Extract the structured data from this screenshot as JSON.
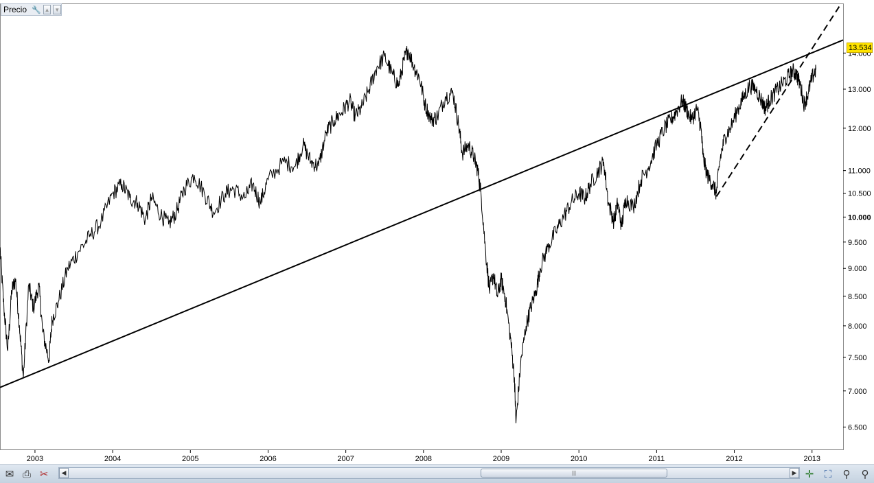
{
  "panel": {
    "title": "Precio",
    "icons": [
      "wrench-icon",
      "arrow-up-icon",
      "arrow-down-icon"
    ]
  },
  "price_badge": "13.534,9",
  "toolbar": {
    "left_icons": [
      "mail-icon",
      "print-icon",
      "scissors-icon"
    ],
    "right_icons": [
      "crosshair-icon",
      "zoom-fit-icon",
      "zoom-out-icon",
      "zoom-in-icon"
    ],
    "scroll_position": 0.77
  },
  "chart_data": {
    "type": "line",
    "title": "",
    "xlabel": "",
    "ylabel": "",
    "y_scale": "log",
    "ylim": [
      6200,
      15500
    ],
    "xlim": [
      2002.55,
      2013.4
    ],
    "y_ticks": [
      {
        "v": 6500,
        "label": "6.500",
        "bold": false
      },
      {
        "v": 7000,
        "label": "7.000",
        "bold": false
      },
      {
        "v": 7500,
        "label": "7.500",
        "bold": false
      },
      {
        "v": 8000,
        "label": "8.000",
        "bold": false
      },
      {
        "v": 8500,
        "label": "8.500",
        "bold": false
      },
      {
        "v": 9000,
        "label": "9.000",
        "bold": false
      },
      {
        "v": 9500,
        "label": "9.500",
        "bold": false
      },
      {
        "v": 10000,
        "label": "10.000",
        "bold": true
      },
      {
        "v": 10500,
        "label": "10.500",
        "bold": false
      },
      {
        "v": 11000,
        "label": "11.000",
        "bold": false
      },
      {
        "v": 12000,
        "label": "12.000",
        "bold": false
      },
      {
        "v": 13000,
        "label": "13.000",
        "bold": false
      },
      {
        "v": 14000,
        "label": "14.000",
        "bold": false
      }
    ],
    "x_ticks": [
      {
        "v": 2003,
        "label": "2003"
      },
      {
        "v": 2004,
        "label": "2004"
      },
      {
        "v": 2005,
        "label": "2005"
      },
      {
        "v": 2006,
        "label": "2006"
      },
      {
        "v": 2007,
        "label": "2007"
      },
      {
        "v": 2008,
        "label": "2008"
      },
      {
        "v": 2009,
        "label": "2009"
      },
      {
        "v": 2010,
        "label": "2010"
      },
      {
        "v": 2011,
        "label": "2011"
      },
      {
        "v": 2012,
        "label": "2012"
      },
      {
        "v": 2013,
        "label": "2013"
      }
    ],
    "series": [
      {
        "points": [
          [
            2002.55,
            9400
          ],
          [
            2002.6,
            8300
          ],
          [
            2002.65,
            7600
          ],
          [
            2002.7,
            8600
          ],
          [
            2002.75,
            8800
          ],
          [
            2002.8,
            8000
          ],
          [
            2002.85,
            7200
          ],
          [
            2002.92,
            8700
          ],
          [
            2002.98,
            8300
          ],
          [
            2003.05,
            8700
          ],
          [
            2003.1,
            7900
          ],
          [
            2003.18,
            7450
          ],
          [
            2003.22,
            8100
          ],
          [
            2003.3,
            8400
          ],
          [
            2003.42,
            9000
          ],
          [
            2003.55,
            9300
          ],
          [
            2003.7,
            9600
          ],
          [
            2003.85,
            9900
          ],
          [
            2004.0,
            10500
          ],
          [
            2004.12,
            10700
          ],
          [
            2004.22,
            10400
          ],
          [
            2004.32,
            10300
          ],
          [
            2004.42,
            9950
          ],
          [
            2004.5,
            10400
          ],
          [
            2004.62,
            10050
          ],
          [
            2004.72,
            9850
          ],
          [
            2004.82,
            10100
          ],
          [
            2004.92,
            10600
          ],
          [
            2005.05,
            10900
          ],
          [
            2005.18,
            10500
          ],
          [
            2005.3,
            10100
          ],
          [
            2005.45,
            10500
          ],
          [
            2005.55,
            10600
          ],
          [
            2005.7,
            10400
          ],
          [
            2005.8,
            10700
          ],
          [
            2005.9,
            10300
          ],
          [
            2006.0,
            10800
          ],
          [
            2006.2,
            11200
          ],
          [
            2006.35,
            11100
          ],
          [
            2006.45,
            11600
          ],
          [
            2006.55,
            11200
          ],
          [
            2006.65,
            11100
          ],
          [
            2006.75,
            11900
          ],
          [
            2006.85,
            12200
          ],
          [
            2006.95,
            12400
          ],
          [
            2007.05,
            12700
          ],
          [
            2007.12,
            12300
          ],
          [
            2007.2,
            12500
          ],
          [
            2007.3,
            13000
          ],
          [
            2007.4,
            13600
          ],
          [
            2007.5,
            13900
          ],
          [
            2007.6,
            13400
          ],
          [
            2007.68,
            13100
          ],
          [
            2007.75,
            13800
          ],
          [
            2007.8,
            14100
          ],
          [
            2007.88,
            13600
          ],
          [
            2007.95,
            13300
          ],
          [
            2008.02,
            12600
          ],
          [
            2008.1,
            12200
          ],
          [
            2008.18,
            12300
          ],
          [
            2008.28,
            12800
          ],
          [
            2008.38,
            12900
          ],
          [
            2008.45,
            12100
          ],
          [
            2008.5,
            11400
          ],
          [
            2008.58,
            11600
          ],
          [
            2008.65,
            11300
          ],
          [
            2008.7,
            11000
          ],
          [
            2008.74,
            10500
          ],
          [
            2008.8,
            9300
          ],
          [
            2008.85,
            8600
          ],
          [
            2008.9,
            8900
          ],
          [
            2008.95,
            8500
          ],
          [
            2009.0,
            8800
          ],
          [
            2009.05,
            8500
          ],
          [
            2009.12,
            7800
          ],
          [
            2009.17,
            7200
          ],
          [
            2009.19,
            6550
          ],
          [
            2009.25,
            7400
          ],
          [
            2009.32,
            8000
          ],
          [
            2009.38,
            8300
          ],
          [
            2009.45,
            8600
          ],
          [
            2009.5,
            9000
          ],
          [
            2009.6,
            9400
          ],
          [
            2009.7,
            9700
          ],
          [
            2009.8,
            10000
          ],
          [
            2009.9,
            10300
          ],
          [
            2010.0,
            10500
          ],
          [
            2010.08,
            10400
          ],
          [
            2010.15,
            10700
          ],
          [
            2010.25,
            11000
          ],
          [
            2010.32,
            11200
          ],
          [
            2010.38,
            10300
          ],
          [
            2010.45,
            9900
          ],
          [
            2010.5,
            10300
          ],
          [
            2010.55,
            9800
          ],
          [
            2010.6,
            10400
          ],
          [
            2010.7,
            10200
          ],
          [
            2010.8,
            10800
          ],
          [
            2010.9,
            11100
          ],
          [
            2011.0,
            11600
          ],
          [
            2011.1,
            12000
          ],
          [
            2011.18,
            12200
          ],
          [
            2011.25,
            12400
          ],
          [
            2011.33,
            12700
          ],
          [
            2011.38,
            12500
          ],
          [
            2011.45,
            12200
          ],
          [
            2011.52,
            12500
          ],
          [
            2011.57,
            12000
          ],
          [
            2011.6,
            11300
          ],
          [
            2011.65,
            10900
          ],
          [
            2011.72,
            10700
          ],
          [
            2011.77,
            10500
          ],
          [
            2011.82,
            11300
          ],
          [
            2011.88,
            11800
          ],
          [
            2011.95,
            12000
          ],
          [
            2012.05,
            12500
          ],
          [
            2012.12,
            12800
          ],
          [
            2012.2,
            13100
          ],
          [
            2012.28,
            13000
          ],
          [
            2012.35,
            12700
          ],
          [
            2012.4,
            12500
          ],
          [
            2012.45,
            12700
          ],
          [
            2012.52,
            12900
          ],
          [
            2012.6,
            13100
          ],
          [
            2012.68,
            13300
          ],
          [
            2012.75,
            13500
          ],
          [
            2012.8,
            13400
          ],
          [
            2012.85,
            13100
          ],
          [
            2012.9,
            12600
          ],
          [
            2012.95,
            12900
          ],
          [
            2013.0,
            13300
          ],
          [
            2013.05,
            13534
          ]
        ]
      }
    ],
    "trend_lines": [
      {
        "style": "solid",
        "from": [
          2002.55,
          7050
        ],
        "to": [
          2013.4,
          14380
        ]
      },
      {
        "style": "dashed",
        "from": [
          2011.77,
          10430
        ],
        "to": [
          2013.35,
          15400
        ]
      }
    ],
    "grid": false
  }
}
